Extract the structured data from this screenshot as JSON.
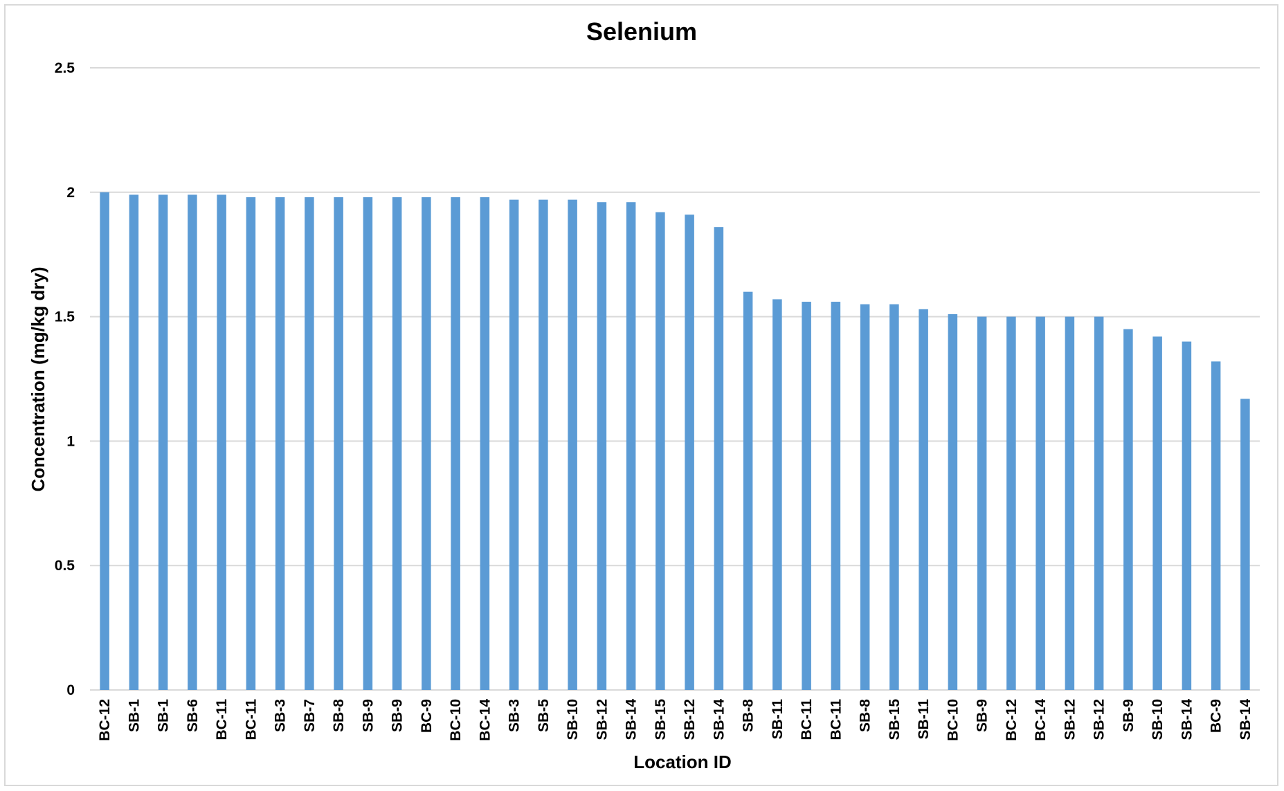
{
  "chart_data": {
    "type": "bar",
    "title": "Selenium",
    "xlabel": "Location ID",
    "ylabel": "Concentration (mg/kg dry)",
    "ylim": [
      0,
      2.5
    ],
    "yticks": [
      "0",
      "0.5",
      "1",
      "1.5",
      "2",
      "2.5"
    ],
    "grid": true,
    "legend": "none",
    "bar_color": "#5b9bd5",
    "categories": [
      "BC-12",
      "SB-1",
      "SB-1",
      "SB-6",
      "BC-11",
      "BC-11",
      "SB-3",
      "SB-7",
      "SB-8",
      "SB-9",
      "SB-9",
      "BC-9",
      "BC-10",
      "BC-14",
      "SB-3",
      "SB-5",
      "SB-10",
      "SB-12",
      "SB-14",
      "SB-15",
      "SB-12",
      "SB-14",
      "SB-8",
      "SB-11",
      "BC-11",
      "BC-11",
      "SB-8",
      "SB-15",
      "SB-11",
      "BC-10",
      "SB-9",
      "BC-12",
      "BC-14",
      "SB-12",
      "SB-12",
      "SB-9",
      "SB-10",
      "SB-14",
      "BC-9",
      "SB-14"
    ],
    "values": [
      2.0,
      1.99,
      1.99,
      1.99,
      1.99,
      1.98,
      1.98,
      1.98,
      1.98,
      1.98,
      1.98,
      1.98,
      1.98,
      1.98,
      1.97,
      1.97,
      1.97,
      1.96,
      1.96,
      1.92,
      1.91,
      1.86,
      1.6,
      1.57,
      1.56,
      1.56,
      1.55,
      1.55,
      1.53,
      1.51,
      1.5,
      1.5,
      1.5,
      1.5,
      1.5,
      1.45,
      1.42,
      1.4,
      1.32,
      1.17
    ]
  }
}
